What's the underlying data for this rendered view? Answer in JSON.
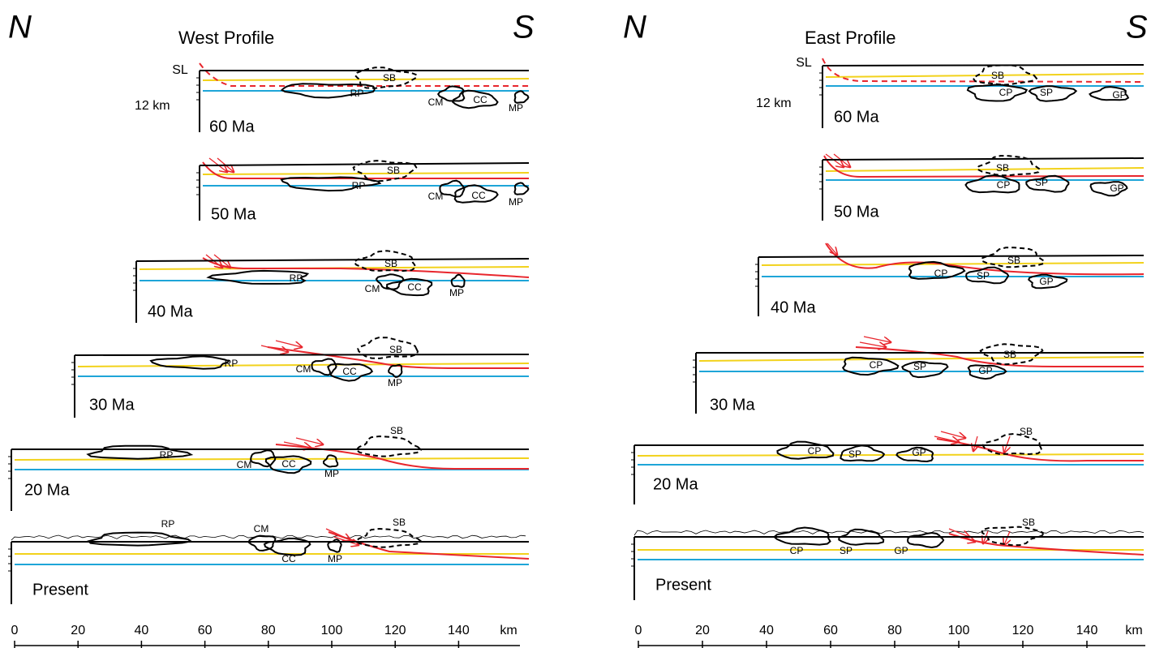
{
  "west": {
    "north": "N",
    "title": "West Profile",
    "south": "S",
    "sea_level": "SL",
    "depth_label": "12  km",
    "scale": {
      "ticks": [
        0,
        20,
        40,
        60,
        80,
        100,
        120,
        140
      ],
      "unit": "km"
    },
    "panels": [
      {
        "age": "60 Ma",
        "labels": [
          "RP",
          "SB",
          "CM",
          "CC",
          "MP"
        ]
      },
      {
        "age": "50 Ma",
        "labels": [
          "RP",
          "SB",
          "CM",
          "CC",
          "MP"
        ]
      },
      {
        "age": "40 Ma",
        "labels": [
          "RP",
          "SB",
          "CM",
          "CC",
          "MP"
        ]
      },
      {
        "age": "30 Ma",
        "labels": [
          "RP",
          "SB",
          "CM",
          "CC",
          "MP"
        ]
      },
      {
        "age": "20 Ma",
        "labels": [
          "RP",
          "SB",
          "CM",
          "CC",
          "MP"
        ]
      },
      {
        "age": "Present",
        "labels": [
          "RP",
          "SB",
          "CM",
          "CC",
          "MP"
        ]
      }
    ]
  },
  "east": {
    "north": "N",
    "title": "East Profile",
    "south": "S",
    "sea_level": "SL",
    "depth_label": "12  km",
    "scale": {
      "ticks": [
        0,
        20,
        40,
        60,
        80,
        100,
        120,
        140
      ],
      "unit": "km"
    },
    "panels": [
      {
        "age": "60 Ma",
        "labels": [
          "SB",
          "CP",
          "SP",
          "GP"
        ]
      },
      {
        "age": "50 Ma",
        "labels": [
          "SB",
          "CP",
          "SP",
          "GP"
        ]
      },
      {
        "age": "40 Ma",
        "labels": [
          "SB",
          "CP",
          "SP",
          "GP"
        ]
      },
      {
        "age": "30 Ma",
        "labels": [
          "SB",
          "CP",
          "SP",
          "GP"
        ]
      },
      {
        "age": "20 Ma",
        "labels": [
          "SB",
          "CP",
          "SP",
          "GP"
        ]
      },
      {
        "age": "Present",
        "labels": [
          "SB",
          "CP",
          "SP",
          "GP"
        ]
      }
    ]
  }
}
